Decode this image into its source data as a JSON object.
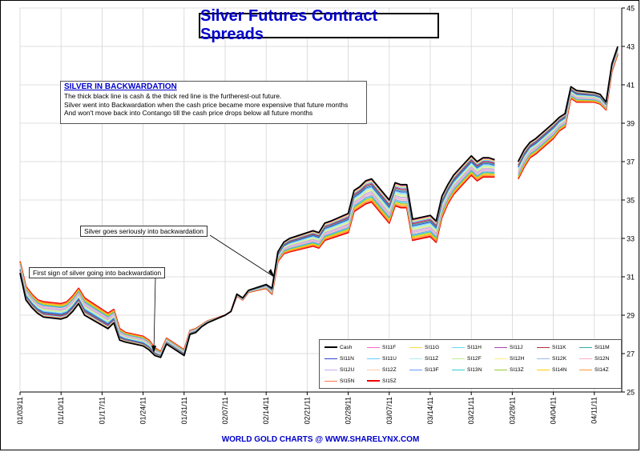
{
  "title": "Silver Futures Contract Spreads",
  "note": {
    "heading": "SILVER IN BACKWARDATION",
    "lines": [
      "The thick black line is cash & the thick red line is the furtherest-out future.",
      "Silver went into Backwardation when the cash price became more expensive that future months",
      "And won't move back into Contango till the cash price drops below all future months"
    ]
  },
  "annotations": {
    "first_sign": "First sign of silver going into backwardation",
    "seriously": "Silver goes seriously into backwardation"
  },
  "footer": "WORLD GOLD CHARTS @ WWW.SHARELYNX.COM",
  "chart_data": {
    "type": "line",
    "x_ticks": [
      "01/03/11",
      "01/10/11",
      "01/17/11",
      "01/24/11",
      "01/31/11",
      "02/07/11",
      "02/14/11",
      "02/21/11",
      "02/28/11",
      "03/07/11",
      "03/14/11",
      "03/21/11",
      "03/28/11",
      "04/04/11",
      "04/11/11"
    ],
    "y_ticks": [
      25,
      27,
      29,
      31,
      33,
      35,
      37,
      39,
      41,
      43,
      45
    ],
    "ylim": [
      25,
      45
    ],
    "y_axis_position": "right",
    "grid": true,
    "legend_position": "bottom-right",
    "x": [
      "01/03/11",
      "01/04/11",
      "01/05/11",
      "01/06/11",
      "01/07/11",
      "01/10/11",
      "01/11/11",
      "01/12/11",
      "01/13/11",
      "01/14/11",
      "01/18/11",
      "01/19/11",
      "01/20/11",
      "01/21/11",
      "01/24/11",
      "01/25/11",
      "01/26/11",
      "01/27/11",
      "01/28/11",
      "01/31/11",
      "02/01/11",
      "02/02/11",
      "02/03/11",
      "02/04/11",
      "02/07/11",
      "02/08/11",
      "02/09/11",
      "02/10/11",
      "02/11/11",
      "02/14/11",
      "02/15/11",
      "02/16/11",
      "02/17/11",
      "02/18/11",
      "02/22/11",
      "02/23/11",
      "02/24/11",
      "02/25/11",
      "02/28/11",
      "03/01/11",
      "03/02/11",
      "03/03/11",
      "03/04/11",
      "03/07/11",
      "03/08/11",
      "03/09/11",
      "03/10/11",
      "03/11/11",
      "03/14/11",
      "03/15/11",
      "03/16/11",
      "03/17/11",
      "03/18/11",
      "03/21/11",
      "03/22/11",
      "03/23/11",
      "03/24/11",
      "03/25/11",
      "03/28/11",
      "03/29/11",
      "03/30/11",
      "03/31/11",
      "04/01/11",
      "04/04/11",
      "04/05/11",
      "04/06/11",
      "04/07/11",
      "04/08/11",
      "04/11/11",
      "04/12/11",
      "04/13/11",
      "04/14/11",
      "04/15/11"
    ],
    "cash": [
      31.2,
      29.8,
      29.4,
      29.1,
      28.9,
      28.8,
      28.9,
      29.2,
      29.6,
      29.0,
      28.3,
      28.6,
      27.7,
      27.6,
      27.4,
      27.2,
      26.9,
      26.8,
      27.5,
      26.9,
      28.0,
      28.1,
      28.4,
      28.6,
      29.0,
      29.2,
      30.1,
      29.9,
      30.3,
      30.6,
      30.4,
      32.3,
      32.8,
      33.0,
      33.4,
      33.3,
      33.8,
      33.9,
      34.3,
      35.5,
      35.7,
      36.0,
      36.1,
      35.0,
      35.9,
      35.8,
      35.8,
      34.0,
      34.2,
      33.9,
      35.2,
      35.8,
      36.3,
      37.3,
      37.0,
      37.2,
      37.2,
      37.1,
      null,
      37.0,
      37.6,
      38.0,
      38.2,
      39.0,
      39.3,
      39.5,
      40.9,
      40.7,
      40.6,
      40.5,
      40.1,
      42.1,
      43.0
    ],
    "far_spreads": [
      0.6,
      0.7,
      0.7,
      0.7,
      0.8,
      0.8,
      0.8,
      0.8,
      0.8,
      0.9,
      0.8,
      0.7,
      0.6,
      0.5,
      0.5,
      0.5,
      0.4,
      0.3,
      0.3,
      0.3,
      0.2,
      0.2,
      0.1,
      0.1,
      0.0,
      0.0,
      -0.1,
      -0.1,
      -0.1,
      -0.2,
      -0.3,
      -0.5,
      -0.6,
      -0.7,
      -0.8,
      -0.8,
      -0.9,
      -0.9,
      -1.0,
      -1.1,
      -1.1,
      -1.2,
      -1.2,
      -1.2,
      -1.2,
      -1.2,
      -1.2,
      -1.1,
      -1.1,
      -1.1,
      -1.1,
      -1.0,
      -1.0,
      -1.0,
      -1.0,
      -1.0,
      -1.0,
      -0.9,
      -0.9,
      -0.9,
      -0.9,
      -0.8,
      -0.8,
      -0.8,
      -0.7,
      -0.7,
      -0.6,
      -0.6,
      -0.5,
      -0.5,
      -0.4,
      -0.4,
      -0.4
    ],
    "series": [
      {
        "name": "Cash",
        "color": "#000000"
      },
      {
        "name": "SI11F",
        "color": "#ff66cc"
      },
      {
        "name": "SI11G",
        "color": "#ffdd44"
      },
      {
        "name": "SI11H",
        "color": "#66ddee"
      },
      {
        "name": "SI11J",
        "color": "#aa44aa"
      },
      {
        "name": "SI11K",
        "color": "#aa3333"
      },
      {
        "name": "SI11M",
        "color": "#33aaaa"
      },
      {
        "name": "SI11N",
        "color": "#3344cc"
      },
      {
        "name": "SI11U",
        "color": "#66ccff"
      },
      {
        "name": "SI11Z",
        "color": "#aaeeee"
      },
      {
        "name": "SI12F",
        "color": "#bbee99"
      },
      {
        "name": "SI12H",
        "color": "#ffee88"
      },
      {
        "name": "SI12K",
        "color": "#99bbee"
      },
      {
        "name": "SI12N",
        "color": "#ffaacc"
      },
      {
        "name": "SI12U",
        "color": "#ccaaee"
      },
      {
        "name": "SI12Z",
        "color": "#ffccaa"
      },
      {
        "name": "SI13F",
        "color": "#6699ff"
      },
      {
        "name": "SI13N",
        "color": "#33cccc"
      },
      {
        "name": "SI13Z",
        "color": "#99cc33"
      },
      {
        "name": "SI14N",
        "color": "#ffcc00"
      },
      {
        "name": "SI14Z",
        "color": "#ff9933"
      },
      {
        "name": "SI15N",
        "color": "#ff7744"
      },
      {
        "name": "SI15Z",
        "color": "#ee0000"
      }
    ]
  }
}
